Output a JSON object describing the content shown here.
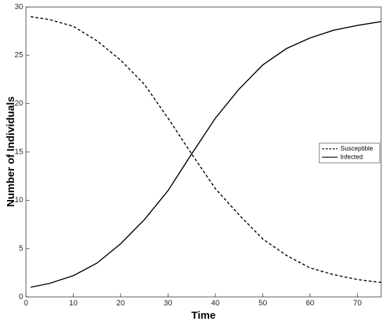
{
  "chart_data": {
    "type": "line",
    "x_label": "Time",
    "y_label": "Number of Individuals",
    "x": [
      1,
      5,
      10,
      15,
      20,
      25,
      30,
      35,
      40,
      45,
      50,
      55,
      60,
      65,
      70,
      75
    ],
    "series": [
      {
        "name": "Susceptible",
        "color": "#000000",
        "dash": true,
        "values": [
          29,
          28.7,
          28,
          26.5,
          24.5,
          22,
          18.5,
          14.8,
          11.2,
          8.5,
          6,
          4.3,
          3,
          2.3,
          1.8,
          1.5
        ]
      },
      {
        "name": "Infected",
        "color": "#000000",
        "dash": false,
        "values": [
          1,
          1.4,
          2.2,
          3.5,
          5.5,
          8,
          11,
          14.8,
          18.5,
          21.5,
          24,
          25.7,
          26.8,
          27.6,
          28.1,
          28.5
        ]
      }
    ],
    "xlim": [
      0,
      75
    ],
    "ylim": [
      0,
      30
    ],
    "xticks": [
      0,
      10,
      20,
      30,
      40,
      50,
      60,
      70
    ],
    "yticks": [
      0,
      5,
      10,
      15,
      20,
      25,
      30
    ],
    "legend": "right"
  }
}
